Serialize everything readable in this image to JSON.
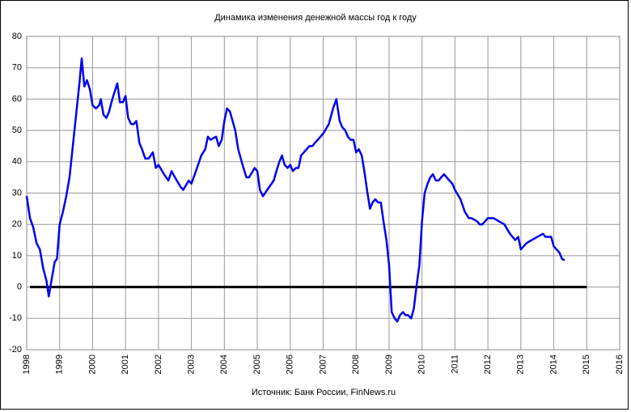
{
  "chart_data": {
    "type": "line",
    "title": "Динамика изменения денежной массы год к году",
    "source": "Источник: Банк России, FinNews.ru",
    "x": [
      1998.0,
      1998.1,
      1998.2,
      1998.3,
      1998.4,
      1998.5,
      1998.6,
      1998.67,
      1998.75,
      1998.85,
      1998.92,
      1999.0,
      1999.1,
      1999.2,
      1999.3,
      1999.4,
      1999.5,
      1999.6,
      1999.67,
      1999.75,
      1999.83,
      1999.92,
      2000.0,
      2000.1,
      2000.2,
      2000.25,
      2000.33,
      2000.42,
      2000.5,
      2000.6,
      2000.75,
      2000.83,
      2000.92,
      2001.0,
      2001.08,
      2001.17,
      2001.25,
      2001.33,
      2001.42,
      2001.5,
      2001.6,
      2001.7,
      2001.83,
      2001.92,
      2002.0,
      2002.17,
      2002.3,
      2002.4,
      2002.5,
      2002.67,
      2002.75,
      2002.92,
      2003.0,
      2003.17,
      2003.3,
      2003.42,
      2003.5,
      2003.58,
      2003.75,
      2003.83,
      2003.92,
      2004.0,
      2004.08,
      2004.17,
      2004.33,
      2004.42,
      2004.58,
      2004.67,
      2004.75,
      2004.92,
      2005.0,
      2005.08,
      2005.17,
      2005.3,
      2005.5,
      2005.58,
      2005.67,
      2005.75,
      2005.83,
      2005.92,
      2006.0,
      2006.08,
      2006.17,
      2006.25,
      2006.33,
      2006.5,
      2006.58,
      2006.67,
      2006.75,
      2006.92,
      2007.0,
      2007.17,
      2007.3,
      2007.4,
      2007.5,
      2007.58,
      2007.67,
      2007.75,
      2007.83,
      2007.92,
      2008.0,
      2008.08,
      2008.17,
      2008.25,
      2008.33,
      2008.42,
      2008.5,
      2008.58,
      2008.67,
      2008.75,
      2008.83,
      2008.92,
      2009.0,
      2009.08,
      2009.17,
      2009.25,
      2009.33,
      2009.42,
      2009.5,
      2009.58,
      2009.67,
      2009.75,
      2009.83,
      2009.92,
      2010.0,
      2010.08,
      2010.17,
      2010.25,
      2010.33,
      2010.42,
      2010.5,
      2010.58,
      2010.67,
      2010.75,
      2010.83,
      2010.92,
      2011.0,
      2011.17,
      2011.3,
      2011.42,
      2011.5,
      2011.67,
      2011.75,
      2011.83,
      2012.0,
      2012.17,
      2012.33,
      2012.5,
      2012.67,
      2012.83,
      2012.92,
      2013.0,
      2013.17,
      2013.33,
      2013.5,
      2013.67,
      2013.75,
      2013.92,
      2014.0,
      2014.17,
      2014.25,
      2014.33
    ],
    "series": [
      {
        "color": "#0000ee",
        "values": [
          29,
          22,
          19,
          14,
          12,
          6,
          2,
          -3,
          2,
          8,
          9,
          20,
          24,
          29,
          35,
          45,
          55,
          65,
          73,
          64,
          66,
          63,
          58,
          57,
          58,
          60,
          55,
          54,
          56,
          60,
          65,
          59,
          59,
          61,
          54,
          52,
          52,
          53,
          46,
          44,
          41,
          41,
          43,
          38,
          39,
          36,
          34,
          37,
          35,
          32,
          31,
          34,
          33,
          38,
          42,
          44,
          48,
          47,
          48,
          45,
          47,
          53,
          57,
          56,
          50,
          44,
          38,
          35,
          35,
          38,
          37,
          31,
          29,
          31,
          34,
          37,
          40,
          42,
          39,
          38,
          39,
          37,
          38,
          38,
          42,
          44,
          45,
          45,
          46,
          48,
          49,
          52,
          57,
          60,
          53,
          51,
          50,
          48,
          47,
          47,
          43,
          44,
          42,
          37,
          31,
          25,
          27,
          28,
          27,
          27,
          21,
          15,
          7,
          -8,
          -10,
          -11,
          -9,
          -8,
          -9,
          -9,
          -10,
          -7,
          0,
          7,
          21,
          30,
          33,
          35,
          36,
          34,
          34,
          35,
          36,
          35,
          34,
          33,
          31,
          28,
          24,
          22,
          22,
          21,
          20,
          20,
          22,
          22,
          21,
          20,
          17,
          15,
          16,
          12,
          14,
          15,
          16,
          17,
          16,
          16,
          13,
          11,
          9,
          8.5
        ]
      }
    ],
    "reference_line": {
      "y": 0,
      "x": [
        1998.1,
        2015
      ],
      "color": "#000000"
    },
    "xlim": [
      1998,
      2016
    ],
    "xticks": [
      1998,
      1999,
      2000,
      2001,
      2002,
      2003,
      2004,
      2005,
      2006,
      2007,
      2008,
      2009,
      2010,
      2011,
      2012,
      2013,
      2014,
      2015,
      2016
    ],
    "ylim": [
      -20,
      80
    ],
    "yticks": [
      -20,
      -10,
      0,
      10,
      20,
      30,
      40,
      50,
      60,
      70,
      80
    ],
    "grid": true
  }
}
